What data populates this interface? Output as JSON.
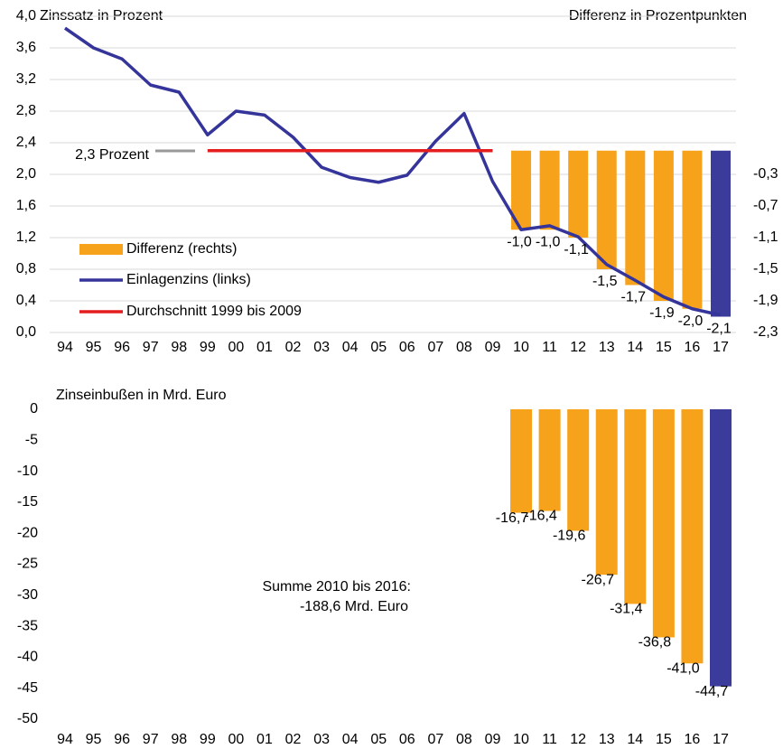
{
  "chart_data": [
    {
      "type": "combo",
      "title": "Zinssatz in Prozent",
      "y2_title": "Differenz in Prozentpunkten",
      "categories": [
        "94",
        "95",
        "96",
        "97",
        "98",
        "99",
        "00",
        "01",
        "02",
        "03",
        "04",
        "05",
        "06",
        "07",
        "08",
        "09",
        "10",
        "11",
        "12",
        "13",
        "14",
        "15",
        "16",
        "17"
      ],
      "ylim": [
        0,
        4
      ],
      "yticks": [
        {
          "value": 0,
          "label": "0,0"
        },
        {
          "value": 0.4,
          "label": "0,4"
        },
        {
          "value": 0.8,
          "label": "0,8"
        },
        {
          "value": 1.2,
          "label": "1,2"
        },
        {
          "value": 1.6,
          "label": "1,6"
        },
        {
          "value": 2.0,
          "label": "2,0"
        },
        {
          "value": 2.4,
          "label": "2,4"
        },
        {
          "value": 2.8,
          "label": "2,8"
        },
        {
          "value": 3.2,
          "label": "3,2"
        },
        {
          "value": 3.6,
          "label": "3,6"
        },
        {
          "value": 4.0,
          "label": "4,0"
        }
      ],
      "y2lim": [
        -2.3,
        1.7
      ],
      "y2ticks": [
        {
          "value": -0.3,
          "label": "-0,3"
        },
        {
          "value": -0.7,
          "label": "-0,7"
        },
        {
          "value": -1.1,
          "label": "-1,1"
        },
        {
          "value": -1.5,
          "label": "-1,5"
        },
        {
          "value": -1.9,
          "label": "-1,9"
        },
        {
          "value": -2.3,
          "label": "-2,3"
        }
      ],
      "grid": true,
      "annotations": [
        "2,3 Prozent"
      ],
      "series": [
        {
          "name": "Differenz (rechts)",
          "type": "bar",
          "axis": "y2",
          "color": "#f7a21b",
          "colors": [
            null,
            null,
            null,
            null,
            null,
            null,
            null,
            null,
            null,
            null,
            null,
            null,
            null,
            null,
            null,
            null,
            "#f7a21b",
            "#f7a21b",
            "#f7a21b",
            "#f7a21b",
            "#f7a21b",
            "#f7a21b",
            "#f7a21b",
            "#3b3b9b"
          ],
          "values": [
            null,
            null,
            null,
            null,
            null,
            null,
            null,
            null,
            null,
            null,
            null,
            null,
            null,
            null,
            null,
            null,
            -1.0,
            -1.0,
            -1.1,
            -1.5,
            -1.7,
            -1.9,
            -2.0,
            -2.1
          ],
          "value_labels": [
            null,
            null,
            null,
            null,
            null,
            null,
            null,
            null,
            null,
            null,
            null,
            null,
            null,
            null,
            null,
            null,
            "-1,0",
            "-1,0",
            "-1,1",
            "-1,5",
            "-1,7",
            "-1,9",
            "-2,0",
            "-2,1"
          ]
        },
        {
          "name": "Einlagenzins (links)",
          "type": "line",
          "color": "#34349a",
          "values": [
            3.85,
            3.6,
            3.46,
            3.13,
            3.04,
            2.5,
            2.8,
            2.75,
            2.47,
            2.09,
            1.96,
            1.9,
            1.99,
            2.42,
            2.77,
            1.91,
            1.3,
            1.35,
            1.21,
            0.86,
            0.66,
            0.45,
            0.3,
            0.22
          ]
        },
        {
          "name": "Durchschnitt 1999 bis 2009",
          "type": "line",
          "color": "#e41e1e",
          "values": [
            null,
            null,
            null,
            null,
            null,
            2.3,
            2.3,
            2.3,
            2.3,
            2.3,
            2.3,
            2.3,
            2.3,
            2.3,
            2.3,
            2.3,
            null,
            null,
            null,
            null,
            null,
            null,
            null,
            null
          ]
        }
      ]
    },
    {
      "type": "bar",
      "title": "Zinseinbußen in Mrd. Euro",
      "categories": [
        "94",
        "95",
        "96",
        "97",
        "98",
        "99",
        "00",
        "01",
        "02",
        "03",
        "04",
        "05",
        "06",
        "07",
        "08",
        "09",
        "10",
        "11",
        "12",
        "13",
        "14",
        "15",
        "16",
        "17"
      ],
      "ylim": [
        -50,
        0
      ],
      "yticks": [
        0,
        -5,
        -10,
        -15,
        -20,
        -25,
        -30,
        -35,
        -40,
        -45,
        -50
      ],
      "annotations": [
        "Summe 2010 bis 2016:",
        "-188,6 Mrd. Euro"
      ],
      "colors": [
        null,
        null,
        null,
        null,
        null,
        null,
        null,
        null,
        null,
        null,
        null,
        null,
        null,
        null,
        null,
        null,
        "#f7a21b",
        "#f7a21b",
        "#f7a21b",
        "#f7a21b",
        "#f7a21b",
        "#f7a21b",
        "#f7a21b",
        "#3b3b9b"
      ],
      "values": [
        null,
        null,
        null,
        null,
        null,
        null,
        null,
        null,
        null,
        null,
        null,
        null,
        null,
        null,
        null,
        null,
        -16.7,
        -16.4,
        -19.6,
        -26.7,
        -31.4,
        -36.8,
        -41.0,
        -44.7
      ],
      "value_labels": [
        null,
        null,
        null,
        null,
        null,
        null,
        null,
        null,
        null,
        null,
        null,
        null,
        null,
        null,
        null,
        null,
        "-16,7",
        "-16,4",
        "-19,6",
        "-26,7",
        "-31,4",
        "-36,8",
        "-41,0",
        "-44,7"
      ]
    }
  ]
}
